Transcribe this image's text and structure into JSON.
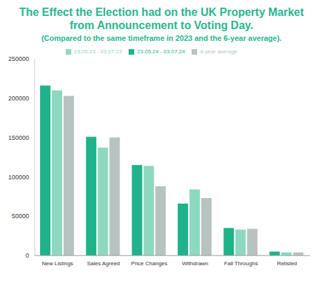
{
  "chart_data": {
    "type": "bar",
    "title": "The Effect the Election had on the UK Property Market from Announcement to Voting Day.",
    "subtitle": "(Compared to the same timeframe in 2023 and the 6-year average).",
    "categories": [
      "New Listings",
      "Sales Agreed",
      "Price Changes",
      "Withdrawn",
      "Fall Throughs",
      "Relisted"
    ],
    "series": [
      {
        "name": "23.05.24 - 03.07.24",
        "color": "#1fb38a",
        "values": [
          216000,
          151000,
          115000,
          66000,
          35000,
          5000
        ]
      },
      {
        "name": "23.05.23 - 03.07.23",
        "color": "#8ed8bf",
        "values": [
          210000,
          137000,
          114000,
          84000,
          33000,
          4000
        ]
      },
      {
        "name": "6-year average",
        "color": "#b7c3c0",
        "values": [
          203000,
          150000,
          88000,
          73000,
          34000,
          4000
        ]
      }
    ],
    "ylim": [
      0,
      250000
    ],
    "yticks": [
      0,
      50000,
      100000,
      150000,
      200000,
      250000
    ],
    "grid": false,
    "legend": "top"
  }
}
